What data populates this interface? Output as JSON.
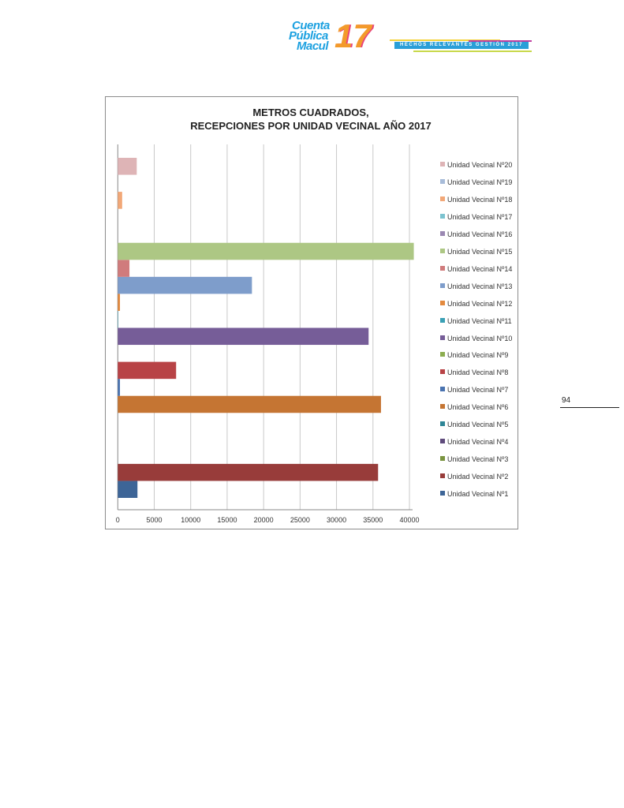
{
  "header": {
    "logo_lines": [
      "Cuenta",
      "Pública",
      "Macul"
    ],
    "logo_number": "17",
    "banner_text": "HECHOS RELEVANTES GESTIÓN 2017"
  },
  "page_number": "94",
  "chart_data": {
    "type": "bar",
    "orientation": "horizontal",
    "title": "METROS CUADRADOS,",
    "subtitle": "RECEPCIONES POR UNIDAD VECINAL AÑO 2017",
    "xlabel": "",
    "ylabel": "",
    "xlim": [
      0,
      40000
    ],
    "x_ticks": [
      "0",
      "5000",
      "10000",
      "15000",
      "20000",
      "25000",
      "30000",
      "35000",
      "40000"
    ],
    "grid": "vertical",
    "legend_position": "right",
    "series": [
      {
        "name": "Unidad Vecinal Nº1",
        "value": 2700,
        "color": "#3d6597"
      },
      {
        "name": "Unidad Vecinal Nº2",
        "value": 35700,
        "color": "#983c3a"
      },
      {
        "name": "Unidad Vecinal Nº3",
        "value": 0,
        "color": "#7a9440"
      },
      {
        "name": "Unidad Vecinal Nº4",
        "value": 0,
        "color": "#5f4b7c"
      },
      {
        "name": "Unidad Vecinal Nº5",
        "value": 0,
        "color": "#2f8697"
      },
      {
        "name": "Unidad Vecinal Nº6",
        "value": 36100,
        "color": "#c57533"
      },
      {
        "name": "Unidad Vecinal Nº7",
        "value": 300,
        "color": "#4a73b0"
      },
      {
        "name": "Unidad Vecinal Nº8",
        "value": 8000,
        "color": "#b84346"
      },
      {
        "name": "Unidad Vecinal Nº9",
        "value": 0,
        "color": "#8cad50"
      },
      {
        "name": "Unidad Vecinal Nº10",
        "value": 34400,
        "color": "#765d98"
      },
      {
        "name": "Unidad Vecinal Nº11",
        "value": 50,
        "color": "#3aa0b5"
      },
      {
        "name": "Unidad Vecinal Nº12",
        "value": 300,
        "color": "#e38a3e"
      },
      {
        "name": "Unidad Vecinal Nº13",
        "value": 18400,
        "color": "#7e9dcb"
      },
      {
        "name": "Unidad Vecinal Nº14",
        "value": 1600,
        "color": "#d07b7c"
      },
      {
        "name": "Unidad Vecinal Nº15",
        "value": 40600,
        "color": "#adc784"
      },
      {
        "name": "Unidad Vecinal Nº16",
        "value": 0,
        "color": "#9a88b2"
      },
      {
        "name": "Unidad Vecinal Nº17",
        "value": 0,
        "color": "#7cc3d0"
      },
      {
        "name": "Unidad Vecinal Nº18",
        "value": 600,
        "color": "#f2a878"
      },
      {
        "name": "Unidad Vecinal Nº19",
        "value": 0,
        "color": "#a8bcd9"
      },
      {
        "name": "Unidad Vecinal Nº20",
        "value": 2600,
        "color": "#deb4b6"
      }
    ]
  }
}
